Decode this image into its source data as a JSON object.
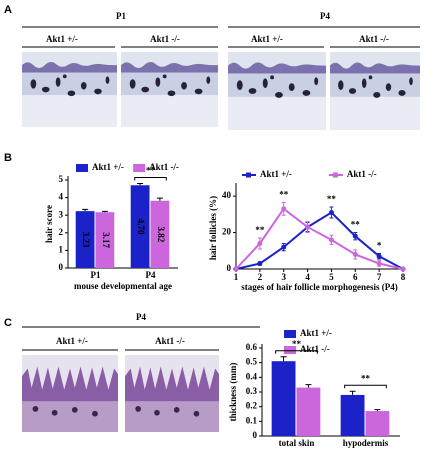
{
  "panel_a": {
    "label": "A",
    "groups": [
      {
        "title": "P1",
        "columns": [
          "Akt1 +/-",
          "Akt1 -/-"
        ]
      },
      {
        "title": "P4",
        "columns": [
          "Akt1 +/-",
          "Akt1 -/-"
        ]
      }
    ]
  },
  "panel_b": {
    "label": "B"
  },
  "panel_c": {
    "label": "C",
    "title": "P4",
    "columns": [
      "Akt1 +/-",
      "Akt1 -/-"
    ]
  },
  "chart_data": [
    {
      "type": "bar",
      "y_label": "hair  score",
      "x_label": "mouse developmental age",
      "categories": [
        "P1",
        "P4"
      ],
      "series": [
        {
          "name": "Akt1 +/-",
          "color": "#1b22c8",
          "values": [
            3.23,
            4.7
          ],
          "errors": [
            0.1,
            0.1
          ],
          "value_labels": [
            "3.23",
            "4.70"
          ]
        },
        {
          "name": "Akt1 -/-",
          "color": "#cc66dd",
          "values": [
            3.17,
            3.82
          ],
          "errors": [
            0.05,
            0.15
          ],
          "value_labels": [
            "3.17",
            "3.82"
          ]
        }
      ],
      "ylim": [
        0,
        5
      ],
      "yticks": [
        0,
        1,
        2,
        3,
        4,
        5
      ],
      "legend": "top",
      "annotations": [
        "**"
      ]
    },
    {
      "type": "line",
      "y_label": "hair follicles (%)",
      "x_label": "stages of hair follicle morphogenesis (P4)",
      "x": [
        1,
        2,
        3,
        4,
        5,
        6,
        7,
        8
      ],
      "series": [
        {
          "name": "Akt1 +/-",
          "color": "#1b22c8",
          "values": [
            0,
            3,
            12,
            23,
            31,
            18,
            7,
            0
          ],
          "errors": [
            0,
            1,
            2,
            2.5,
            3,
            2,
            1.5,
            0
          ]
        },
        {
          "name": "Akt1 -/-",
          "color": "#cc66dd",
          "values": [
            0,
            14,
            33,
            23,
            16,
            8,
            3,
            0
          ],
          "errors": [
            0,
            3,
            3.5,
            3,
            2.5,
            2.5,
            1.5,
            0
          ]
        }
      ],
      "xlim": [
        1,
        8
      ],
      "xticks": [
        1,
        2,
        3,
        4,
        5,
        6,
        7,
        8
      ],
      "ylim": [
        0,
        45
      ],
      "yticks": [
        0,
        20,
        40
      ],
      "legend": "top",
      "annotations": [
        "**",
        "**",
        "**",
        "**",
        "*"
      ]
    },
    {
      "type": "bar",
      "y_label": "thickness (mm)",
      "categories": [
        "total skin",
        "hypodermis"
      ],
      "series": [
        {
          "name": "Akt1 +/-",
          "color": "#1b22c8",
          "values": [
            0.51,
            0.28
          ],
          "errors": [
            0.03,
            0.025
          ]
        },
        {
          "name": "Akt1 -/-",
          "color": "#cc66dd",
          "values": [
            0.33,
            0.17
          ],
          "errors": [
            0.02,
            0.01
          ]
        }
      ],
      "ylim": [
        0,
        0.6
      ],
      "yticks": [
        0,
        0.1,
        0.2,
        0.3,
        0.4,
        0.5,
        0.6
      ],
      "legend": "upper right",
      "annotations": [
        "**",
        "**"
      ]
    }
  ]
}
